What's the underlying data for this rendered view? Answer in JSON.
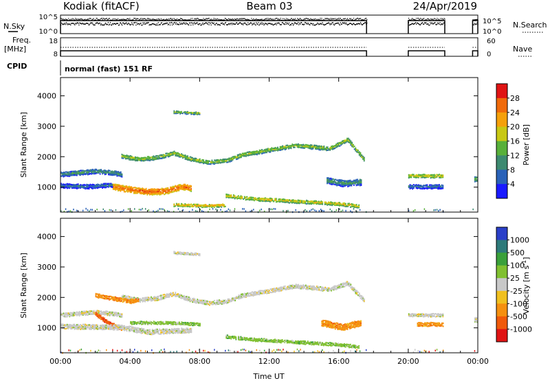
{
  "header": {
    "station": "Kodiak (fitACF)",
    "beam": "Beam 03",
    "date": "24/Apr/2019"
  },
  "strip_labels": {
    "nsky": "N.Sky",
    "nsearch": "N.Search",
    "freq_l1": "Freq.",
    "freq_l2": "[MHz]",
    "nave": "Nave",
    "cpid": "CPID",
    "mode_text": "normal (fast) 151 RF"
  },
  "strip_ticks": {
    "noise_left": [
      "10^5",
      "10^0"
    ],
    "noise_right": [
      "10^5",
      "10^0"
    ],
    "freq_left": [
      "18",
      "8"
    ],
    "nave_right": [
      "60",
      "0"
    ]
  },
  "chart_data": [
    {
      "type": "heatmap",
      "name": "power",
      "xlabel": "",
      "ylabel": "Slant Range [km]",
      "x_range_hours": [
        0,
        24
      ],
      "x_ticks": [
        "00:00",
        "04:00",
        "08:00",
        "12:00",
        "16:00",
        "20:00",
        "00:00"
      ],
      "ylim": [
        180,
        4600
      ],
      "y_ticks": [
        1000,
        2000,
        3000,
        4000
      ],
      "colorbar": {
        "label": "Power [dB]",
        "ticks": [
          "4",
          "8",
          "12",
          "16",
          "20",
          "24",
          "28"
        ],
        "colors": [
          "#1a1aff",
          "#2a62b8",
          "#3d8a70",
          "#58b03a",
          "#c8c814",
          "#f5a00a",
          "#f06a0a",
          "#e01414"
        ]
      },
      "data_segments_hours": [
        [
          0,
          17.6
        ],
        [
          20.0,
          22.1
        ],
        [
          23.7,
          24
        ]
      ],
      "echo_bands": [
        {
          "t0": 3.5,
          "t1": 17.5,
          "path_km": [
            [
              3.5,
              2050
            ],
            [
              4.5,
              1950
            ],
            [
              5.5,
              2000
            ],
            [
              6.5,
              2150
            ],
            [
              7.5,
              1950
            ],
            [
              8.5,
              1850
            ],
            [
              9.5,
              1900
            ],
            [
              10.5,
              2100
            ],
            [
              11.5,
              2200
            ],
            [
              12.5,
              2300
            ],
            [
              13.5,
              2400
            ],
            [
              14.5,
              2350
            ],
            [
              15.5,
              2300
            ],
            [
              16.5,
              2600
            ],
            [
              17.5,
              1900
            ]
          ],
          "width_km": 130,
          "power_db": 17
        },
        {
          "t0": 3.0,
          "t1": 7.5,
          "path_km": [
            [
              3.0,
              1050
            ],
            [
              4.0,
              950
            ],
            [
              5.0,
              880
            ],
            [
              6.0,
              900
            ],
            [
              7.0,
              1050
            ],
            [
              7.5,
              1000
            ]
          ],
          "width_km": 200,
          "power_db": 27
        },
        {
          "t0": 0.0,
          "t1": 3.5,
          "path_km": [
            [
              0.0,
              1450
            ],
            [
              1.0,
              1500
            ],
            [
              2.0,
              1550
            ],
            [
              3.0,
              1500
            ],
            [
              3.5,
              1450
            ]
          ],
          "width_km": 150,
          "power_db": 12
        },
        {
          "t0": 0.0,
          "t1": 3.0,
          "path_km": [
            [
              0.0,
              1080
            ],
            [
              1.5,
              1050
            ],
            [
              3.0,
              1100
            ]
          ],
          "width_km": 140,
          "power_db": 9
        },
        {
          "t0": 9.5,
          "t1": 17.2,
          "path_km": [
            [
              9.5,
              750
            ],
            [
              11.0,
              650
            ],
            [
              12.5,
              600
            ],
            [
              14.0,
              550
            ],
            [
              15.5,
              500
            ],
            [
              16.5,
              450
            ],
            [
              17.2,
              400
            ]
          ],
          "width_km": 110,
          "power_db": 20
        },
        {
          "t0": 6.5,
          "t1": 9.5,
          "path_km": [
            [
              6.5,
              450
            ],
            [
              8.0,
              420
            ],
            [
              9.5,
              430
            ]
          ],
          "width_km": 90,
          "power_db": 22
        },
        {
          "t0": 15.3,
          "t1": 17.3,
          "path_km": [
            [
              15.3,
              1250
            ],
            [
              16.3,
              1150
            ],
            [
              17.3,
              1200
            ]
          ],
          "width_km": 200,
          "power_db": 12
        },
        {
          "t0": 6.5,
          "t1": 8.0,
          "path_km": [
            [
              6.5,
              3500
            ],
            [
              7.2,
              3480
            ],
            [
              8.0,
              3450
            ]
          ],
          "width_km": 80,
          "power_db": 16
        },
        {
          "t0": 20.0,
          "t1": 22.0,
          "path_km": [
            [
              20.0,
              1400
            ],
            [
              22.0,
              1400
            ]
          ],
          "width_km": 110,
          "power_db": 20
        },
        {
          "t0": 20.0,
          "t1": 22.0,
          "path_km": [
            [
              20.0,
              1050
            ],
            [
              22.0,
              1050
            ]
          ],
          "width_km": 130,
          "power_db": 9
        },
        {
          "t0": 23.8,
          "t1": 24.0,
          "path_km": [
            [
              23.8,
              1300
            ],
            [
              24.0,
              1300
            ]
          ],
          "width_km": 160,
          "power_db": 15
        }
      ]
    },
    {
      "type": "heatmap",
      "name": "velocity",
      "xlabel": "Time UT",
      "ylabel": "Slant Range [km]",
      "x_range_hours": [
        0,
        24
      ],
      "x_ticks": [
        "00:00",
        "04:00",
        "08:00",
        "12:00",
        "16:00",
        "20:00",
        "00:00"
      ],
      "ylim": [
        180,
        4600
      ],
      "y_ticks": [
        1000,
        2000,
        3000,
        4000
      ],
      "colorbar": {
        "label": "Velocity [m s^-1]",
        "ticks": [
          "1000",
          "500",
          "100",
          "25",
          "-25",
          "-100",
          "-500",
          "-1000"
        ],
        "colors": [
          "#2a3fc8",
          "#2e7a7a",
          "#3aa03a",
          "#80c030",
          "#c8c8c8",
          "#f0c020",
          "#f59010",
          "#f05a0a",
          "#e01414"
        ]
      },
      "data_segments_hours": [
        [
          0,
          17.6
        ],
        [
          20.0,
          22.1
        ],
        [
          23.7,
          24
        ]
      ],
      "echo_bands": [
        {
          "t0": 3.5,
          "t1": 17.5,
          "path_km": [
            [
              3.5,
              2050
            ],
            [
              4.5,
              1950
            ],
            [
              5.5,
              2000
            ],
            [
              6.5,
              2150
            ],
            [
              7.5,
              1950
            ],
            [
              8.5,
              1850
            ],
            [
              9.5,
              1900
            ],
            [
              10.5,
              2100
            ],
            [
              11.5,
              2200
            ],
            [
              12.5,
              2300
            ],
            [
              13.5,
              2400
            ],
            [
              14.5,
              2350
            ],
            [
              15.5,
              2300
            ],
            [
              16.5,
              2500
            ],
            [
              17.5,
              1900
            ]
          ],
          "width_km": 130,
          "velocity_class": 4
        },
        {
          "t0": 2.0,
          "t1": 4.5,
          "path_km": [
            [
              2.0,
              2100
            ],
            [
              3.0,
              2000
            ],
            [
              4.0,
              1900
            ],
            [
              4.5,
              1950
            ]
          ],
          "width_km": 120,
          "velocity_class": 6
        },
        {
          "t0": 0.0,
          "t1": 3.5,
          "path_km": [
            [
              0.0,
              1450
            ],
            [
              1.0,
              1500
            ],
            [
              2.0,
              1550
            ],
            [
              3.0,
              1500
            ],
            [
              3.5,
              1450
            ]
          ],
          "width_km": 130,
          "velocity_class": 4
        },
        {
          "t0": 2.0,
          "t1": 3.5,
          "path_km": [
            [
              2.0,
              1500
            ],
            [
              2.7,
              1200
            ],
            [
              3.5,
              1000
            ]
          ],
          "width_km": 120,
          "velocity_class": 7
        },
        {
          "t0": 0.0,
          "t1": 7.5,
          "path_km": [
            [
              0.0,
              1080
            ],
            [
              3.5,
              1050
            ],
            [
              5.0,
              900
            ],
            [
              7.5,
              950
            ]
          ],
          "width_km": 160,
          "velocity_class": 4
        },
        {
          "t0": 4.0,
          "t1": 8.0,
          "path_km": [
            [
              4.0,
              1200
            ],
            [
              6.0,
              1200
            ],
            [
              8.0,
              1150
            ]
          ],
          "width_km": 90,
          "velocity_class": 3
        },
        {
          "t0": 9.5,
          "t1": 17.2,
          "path_km": [
            [
              9.5,
              750
            ],
            [
              11.0,
              650
            ],
            [
              12.5,
              600
            ],
            [
              14.0,
              550
            ],
            [
              15.5,
              500
            ],
            [
              16.5,
              450
            ],
            [
              17.2,
              400
            ]
          ],
          "width_km": 100,
          "velocity_class": 3
        },
        {
          "t0": 15.0,
          "t1": 17.3,
          "path_km": [
            [
              15.0,
              1200
            ],
            [
              16.2,
              1050
            ],
            [
              17.3,
              1200
            ]
          ],
          "width_km": 200,
          "velocity_class": 6
        },
        {
          "t0": 6.5,
          "t1": 8.0,
          "path_km": [
            [
              6.5,
              3500
            ],
            [
              7.2,
              3480
            ],
            [
              8.0,
              3450
            ]
          ],
          "width_km": 80,
          "velocity_class": 4
        },
        {
          "t0": 20.0,
          "t1": 22.0,
          "path_km": [
            [
              20.0,
              1450
            ],
            [
              22.0,
              1450
            ]
          ],
          "width_km": 100,
          "velocity_class": 4
        },
        {
          "t0": 20.5,
          "t1": 22.0,
          "path_km": [
            [
              20.5,
              1150
            ],
            [
              22.0,
              1150
            ]
          ],
          "width_km": 120,
          "velocity_class": 6
        },
        {
          "t0": 23.8,
          "t1": 24.0,
          "path_km": [
            [
              23.8,
              1300
            ],
            [
              24.0,
              1300
            ]
          ],
          "width_km": 160,
          "velocity_class": 4
        }
      ]
    }
  ]
}
